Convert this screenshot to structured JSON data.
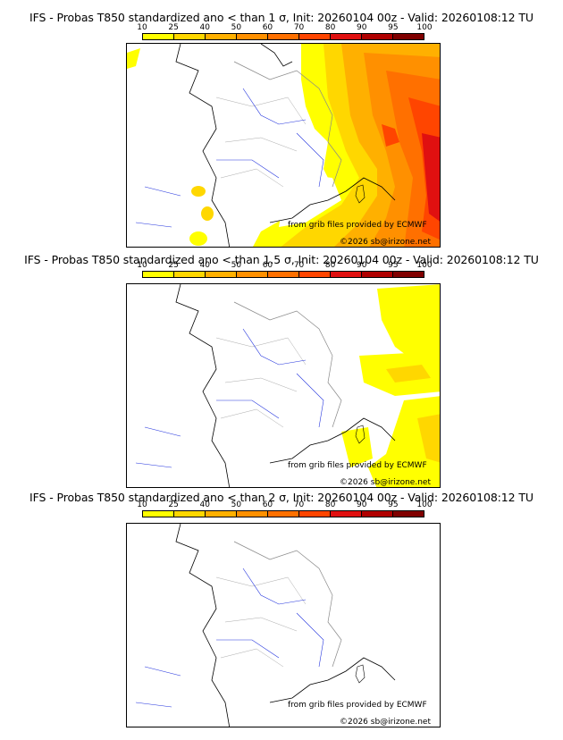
{
  "colorbar": {
    "ticks": [
      "10",
      "25",
      "40",
      "50",
      "60",
      "70",
      "80",
      "90",
      "95",
      "100"
    ],
    "colors": [
      "#ffff00",
      "#ffd700",
      "#ffb000",
      "#ff9000",
      "#ff7000",
      "#ff4500",
      "#e01010",
      "#b00000",
      "#800000"
    ]
  },
  "panels": [
    {
      "title": "IFS - Probas T850  standardized ano < than 1 σ, Init: 20260104 00z - Valid: 20260108:12 TU",
      "credit1": "from grib files provided by ECMWF",
      "credit2": "©2026 sb@irizone.net"
    },
    {
      "title": "IFS - Probas T850  standardized ano < than 1.5 σ, Init: 20260104 00z - Valid: 20260108:12 TU",
      "credit1": "from grib files provided by ECMWF",
      "credit2": "©2026 sb@irizone.net"
    },
    {
      "title": "IFS - Probas T850  standardized ano < than 2 σ, Init: 20260104 00z - Valid: 20260108:12 TU",
      "credit1": "from grib files provided by ECMWF",
      "credit2": "©2026 sb@irizone.net"
    }
  ]
}
